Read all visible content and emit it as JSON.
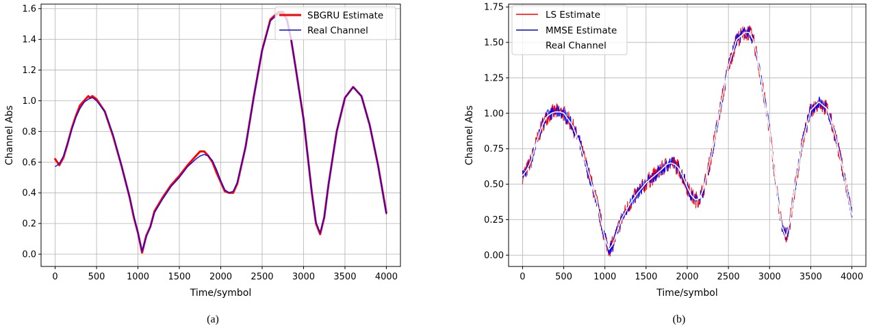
{
  "chart_data": [
    {
      "type": "line",
      "caption": "(a)",
      "xlabel": "Time/symbol",
      "ylabel": "Channel Abs",
      "xlim": [
        -170,
        4170
      ],
      "ylim": [
        -0.08,
        1.63
      ],
      "xticks": [
        0,
        500,
        1000,
        1500,
        2000,
        2500,
        3000,
        3500,
        4000
      ],
      "yticks": [
        0.0,
        0.2,
        0.4,
        0.6,
        0.8,
        1.0,
        1.2,
        1.4,
        1.6
      ],
      "ytick_labels": [
        "0.0",
        "0.2",
        "0.4",
        "0.6",
        "0.8",
        "1.0",
        "1.2",
        "1.4",
        "1.6"
      ],
      "grid": true,
      "legend_position": "top-right",
      "series": [
        {
          "name": "SBGRU Estimate",
          "color": "#ff0000",
          "x": [
            0,
            50,
            100,
            150,
            200,
            250,
            300,
            350,
            400,
            420,
            450,
            500,
            600,
            700,
            800,
            900,
            950,
            1000,
            1050,
            1100,
            1150,
            1200,
            1300,
            1400,
            1500,
            1600,
            1700,
            1750,
            1800,
            1850,
            1900,
            1950,
            2000,
            2050,
            2100,
            2150,
            2200,
            2300,
            2400,
            2500,
            2600,
            2700,
            2750,
            2800,
            2850,
            2900,
            3000,
            3100,
            3150,
            3200,
            3250,
            3300,
            3400,
            3500,
            3600,
            3700,
            3800,
            3900,
            4000
          ],
          "y": [
            0.62,
            0.58,
            0.63,
            0.72,
            0.82,
            0.9,
            0.97,
            1.0,
            1.03,
            1.02,
            1.03,
            1.01,
            0.93,
            0.77,
            0.58,
            0.37,
            0.24,
            0.14,
            0.01,
            0.12,
            0.18,
            0.28,
            0.37,
            0.45,
            0.51,
            0.58,
            0.64,
            0.67,
            0.67,
            0.64,
            0.6,
            0.53,
            0.47,
            0.41,
            0.4,
            0.4,
            0.46,
            0.7,
            1.03,
            1.33,
            1.53,
            1.58,
            1.58,
            1.53,
            1.4,
            1.23,
            0.88,
            0.4,
            0.2,
            0.13,
            0.24,
            0.45,
            0.8,
            1.02,
            1.09,
            1.03,
            0.84,
            0.58,
            0.27
          ]
        },
        {
          "name": "Real Channel",
          "color": "#0000ff",
          "x": [
            0,
            50,
            100,
            150,
            200,
            250,
            300,
            350,
            400,
            450,
            500,
            600,
            700,
            800,
            900,
            950,
            1000,
            1050,
            1100,
            1150,
            1200,
            1300,
            1400,
            1500,
            1600,
            1700,
            1750,
            1800,
            1850,
            1900,
            1950,
            2000,
            2050,
            2100,
            2150,
            2200,
            2300,
            2400,
            2500,
            2600,
            2700,
            2750,
            2800,
            2850,
            2900,
            3000,
            3100,
            3150,
            3200,
            3250,
            3300,
            3400,
            3500,
            3600,
            3700,
            3800,
            3900,
            4000
          ],
          "y": [
            0.57,
            0.59,
            0.64,
            0.72,
            0.81,
            0.89,
            0.95,
            0.99,
            1.01,
            1.02,
            1.0,
            0.93,
            0.78,
            0.58,
            0.37,
            0.25,
            0.14,
            0.02,
            0.11,
            0.18,
            0.27,
            0.36,
            0.44,
            0.5,
            0.57,
            0.62,
            0.64,
            0.65,
            0.64,
            0.61,
            0.55,
            0.48,
            0.42,
            0.4,
            0.41,
            0.47,
            0.7,
            1.03,
            1.33,
            1.52,
            1.57,
            1.57,
            1.52,
            1.4,
            1.23,
            0.88,
            0.4,
            0.21,
            0.14,
            0.24,
            0.45,
            0.8,
            1.02,
            1.09,
            1.03,
            0.84,
            0.58,
            0.26
          ]
        }
      ]
    },
    {
      "type": "line",
      "caption": "(b)",
      "xlabel": "Time/symbol",
      "ylabel": "Channel Abs",
      "xlim": [
        -170,
        4170
      ],
      "ylim": [
        -0.08,
        1.77
      ],
      "xticks": [
        0,
        500,
        1000,
        1500,
        2000,
        2500,
        3000,
        3500,
        4000
      ],
      "yticks": [
        0.0,
        0.25,
        0.5,
        0.75,
        1.0,
        1.25,
        1.5,
        1.75
      ],
      "ytick_labels": [
        "0.00",
        "0.25",
        "0.50",
        "0.75",
        "1.00",
        "1.25",
        "1.50",
        "1.75"
      ],
      "grid": true,
      "legend_position": "top-left",
      "noise_amplitude": {
        "ls": 0.06,
        "mmse": 0.045
      },
      "series": [
        {
          "name": "LS Estimate",
          "color": "#ff0000"
        },
        {
          "name": "MMSE Estimate",
          "color": "#0000ff"
        },
        {
          "name": "Real Channel",
          "color": "#ffffff",
          "x": [
            0,
            50,
            100,
            150,
            200,
            250,
            300,
            350,
            400,
            450,
            500,
            600,
            700,
            800,
            900,
            950,
            1000,
            1050,
            1100,
            1150,
            1200,
            1300,
            1400,
            1500,
            1600,
            1700,
            1750,
            1800,
            1850,
            1900,
            1950,
            2000,
            2050,
            2100,
            2150,
            2200,
            2300,
            2400,
            2500,
            2600,
            2700,
            2750,
            2800,
            2850,
            2900,
            3000,
            3100,
            3150,
            3200,
            3250,
            3300,
            3400,
            3500,
            3600,
            3700,
            3800,
            3900,
            4000
          ],
          "y": [
            0.56,
            0.6,
            0.66,
            0.76,
            0.85,
            0.93,
            0.98,
            1.0,
            1.01,
            1.01,
            1.0,
            0.92,
            0.78,
            0.58,
            0.38,
            0.24,
            0.12,
            0.04,
            0.08,
            0.17,
            0.25,
            0.36,
            0.44,
            0.51,
            0.56,
            0.61,
            0.64,
            0.65,
            0.64,
            0.61,
            0.55,
            0.48,
            0.42,
            0.39,
            0.4,
            0.47,
            0.72,
            1.03,
            1.33,
            1.52,
            1.57,
            1.57,
            1.52,
            1.4,
            1.23,
            0.88,
            0.4,
            0.2,
            0.13,
            0.24,
            0.45,
            0.8,
            1.02,
            1.08,
            1.03,
            0.84,
            0.58,
            0.28
          ]
        }
      ]
    }
  ]
}
